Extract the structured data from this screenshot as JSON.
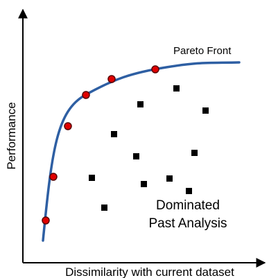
{
  "diagram": {
    "y_axis_label": "Performance",
    "x_axis_label": "Dissimilarity with current dataset",
    "front_label": "Pareto Front",
    "dominated_label_line1": "Dominated",
    "dominated_label_line2": "Past Analysis",
    "colors": {
      "axes": "#000000",
      "front_curve": "#2e5fa3",
      "pareto_point_fill": "#e00000",
      "pareto_point_stroke": "#5a0000",
      "dominated_point": "#000000"
    }
  }
}
